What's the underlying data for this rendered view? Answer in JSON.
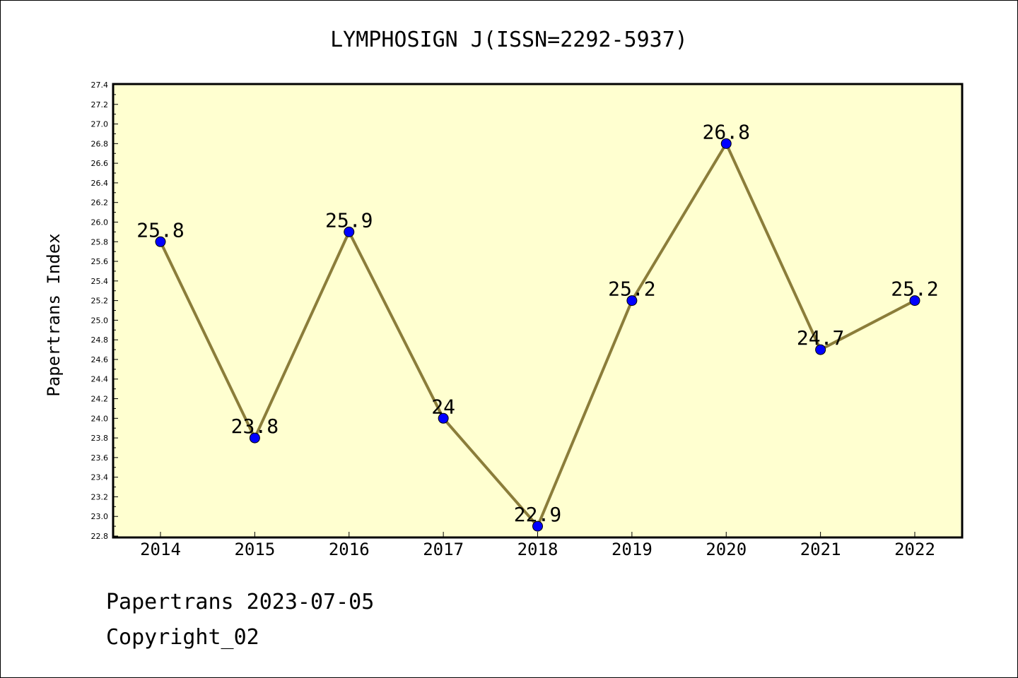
{
  "chart_data": {
    "type": "line",
    "title": "LYMPHOSIGN J(ISSN=2292-5937)",
    "xlabel": "",
    "ylabel": "Papertrans Index",
    "categories": [
      "2014",
      "2015",
      "2016",
      "2017",
      "2018",
      "2019",
      "2020",
      "2021",
      "2022"
    ],
    "series": [
      {
        "values": [
          25.8,
          23.8,
          25.9,
          24.0,
          22.9,
          25.2,
          26.8,
          24.7,
          25.2
        ],
        "labels": [
          "25.8",
          "23.8",
          "25.9",
          "24",
          "22.9",
          "25.2",
          "26.8",
          "24.7",
          "25.2"
        ]
      }
    ],
    "ylim": [
      22.8,
      27.4
    ],
    "ytick_step": 0.2,
    "ytick_labels": [
      "22.8",
      "23.0",
      "23.2",
      "23.4",
      "23.6",
      "23.8",
      "24.0",
      "24.2",
      "24.4",
      "24.6",
      "24.8",
      "25.0",
      "25.2",
      "25.4",
      "25.6",
      "25.8",
      "26.0",
      "26.2",
      "26.4",
      "26.6",
      "26.8",
      "27.0",
      "27.2",
      "27.4"
    ],
    "grid": false,
    "colors": {
      "plot_background": "#ffffd0",
      "line": "#8b7d3a",
      "marker": "#0000ff"
    }
  },
  "footer": {
    "line1": "Papertrans 2023-07-05",
    "line2": "Copyright_02"
  }
}
